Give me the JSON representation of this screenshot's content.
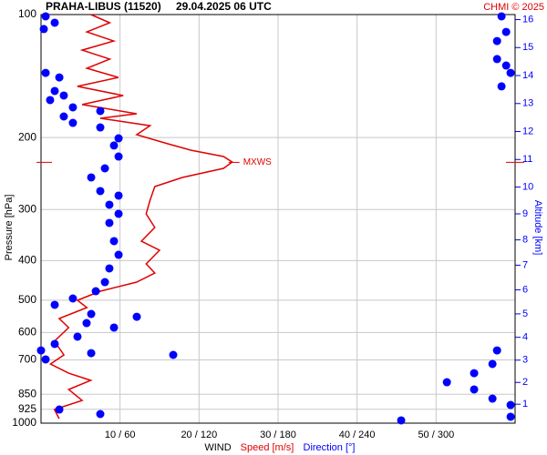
{
  "chart_data": {
    "type": "line",
    "title": "PRAHA-LIBUS (11520)",
    "subtitle": "29.04.2025 06 UTC",
    "credit": "CHMI © 2025",
    "y_label": "Pressure [hPa]",
    "y2_label": "Altitude [km]",
    "x_label": "WIND",
    "ylog": true,
    "grid": true,
    "ylim": [
      1000,
      100
    ],
    "yticks": [
      100,
      200,
      300,
      400,
      500,
      600,
      700,
      850,
      925,
      1000
    ],
    "xlim": [
      0,
      60
    ],
    "x2lim": [
      0,
      360
    ],
    "xticks": [
      {
        "value": 10,
        "label": "10 / 60"
      },
      {
        "value": 20,
        "label": "20 / 120"
      },
      {
        "value": 30,
        "label": "30 / 180"
      },
      {
        "value": 40,
        "label": "40 / 240"
      },
      {
        "value": 50,
        "label": "50 / 300"
      }
    ],
    "y2ticks": [
      1,
      2,
      3,
      4,
      5,
      6,
      7,
      8,
      9,
      10,
      11,
      12,
      13,
      14,
      15,
      16
    ],
    "series": [
      {
        "name": "Speed [m/s]",
        "color": "#e00000",
        "pressure": [
          100,
          104.7,
          110.3,
          116.1,
          122.2,
          128.5,
          135.3,
          142.5,
          149.9,
          157.8,
          166.1,
          174.9,
          179.4,
          187.0,
          196.8,
          207.2,
          214.8,
          222.6,
          229.6,
          237.9,
          250.4,
          263.6,
          284.6,
          307.4,
          332.0,
          358.5,
          377.5,
          407.6,
          429.0,
          451.7,
          475.4,
          500.3,
          521.3,
          554.6,
          583.6,
          630.3,
          680.7,
          716.5,
          754.5,
          786,
          827,
          880,
          926,
          975
        ],
        "values": [
          6.3,
          8.7,
          5.8,
          9.2,
          5.2,
          8.7,
          5.8,
          9.8,
          4.6,
          10.4,
          5.2,
          12.1,
          7.5,
          13.8,
          12.1,
          16.1,
          19.0,
          23.1,
          24.2,
          23.1,
          17.9,
          14.4,
          13.8,
          13.3,
          14.4,
          12.7,
          15.0,
          13.3,
          14.4,
          12.1,
          7.5,
          4.6,
          5.8,
          2.3,
          3.5,
          1.7,
          2.9,
          1.2,
          3.5,
          6.3,
          3.5,
          5.2,
          1.7,
          2.3
        ]
      },
      {
        "name": "Direction [°]",
        "color": "#0000ff",
        "axis": "x2",
        "pressure": [
          101.0,
          101.0,
          104.7,
          108.5,
          110.3,
          116.1,
          128.5,
          133.3,
          138.9,
          138.9,
          142.5,
          149.9,
          153.8,
          157.8,
          161.9,
          168.7,
          172.2,
          177.6,
          184.1,
          188.9,
          200.9,
          209.2,
          222.6,
          237.9,
          250.4,
          270.4,
          277.4,
          292.0,
          307.4,
          323.6,
          358.5,
          387.3,
          418.1,
          451.7,
          475.4,
          495.3,
          513.3,
          540.5,
          549.0,
          568.9,
          583.6,
          614.3,
          640.0,
          663.8,
          663.8,
          674.1,
          680.7,
          698.3,
          716.5,
          754.5,
          794.1,
          827,
          870.9,
          902.6,
          926,
          950,
          964.7,
          984.7
        ],
        "values": [
          3.5,
          349.7,
          10.4,
          2.1,
          353.2,
          346.3,
          346.3,
          353.2,
          356.6,
          3.5,
          13.9,
          349.7,
          10.4,
          17.3,
          6.9,
          24.2,
          45.0,
          17.3,
          24.2,
          45.0,
          58.9,
          55.4,
          58.9,
          48.5,
          38.1,
          45.0,
          58.9,
          51.9,
          58.9,
          51.9,
          55.4,
          58.9,
          51.9,
          48.5,
          41.6,
          24.2,
          10.4,
          38.1,
          72.7,
          34.6,
          55.4,
          27.7,
          10.4,
          0,
          346.3,
          38.1,
          100.4,
          3.5,
          342.8,
          328.9,
          308.2,
          328.9,
          342.8,
          356.6,
          13.9,
          45.0,
          356.6,
          273.5
        ]
      }
    ],
    "annotations": [
      {
        "text": "MXWS",
        "pressure": 230,
        "value": 24.2
      }
    ]
  }
}
